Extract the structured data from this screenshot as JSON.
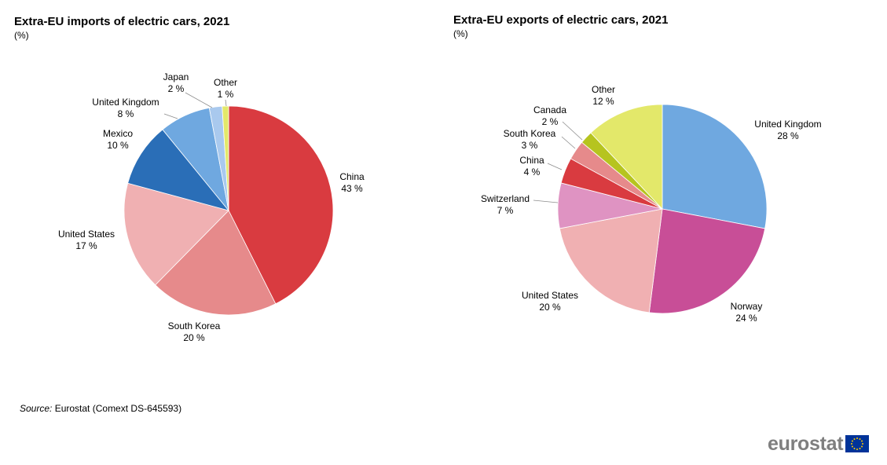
{
  "charts": {
    "left": {
      "title": "Extra-EU imports of electric cars, 2021",
      "subtitle": "(%)"
    },
    "right": {
      "title": "Extra-EU exports of electric cars, 2021",
      "subtitle": "(%)"
    }
  },
  "chart_data": [
    {
      "type": "pie",
      "title": "Extra-EU imports of electric cars, 2021",
      "unit": "(%)",
      "slices": [
        {
          "label": "China",
          "value": 43,
          "value_label": "43 %",
          "color": "#d93b40"
        },
        {
          "label": "South Korea",
          "value": 20,
          "value_label": "20 %",
          "color": "#e68a8b"
        },
        {
          "label": "United States",
          "value": 17,
          "value_label": "17 %",
          "color": "#f0b0b2"
        },
        {
          "label": "Mexico",
          "value": 10,
          "value_label": "10 %",
          "color": "#2a6eb7"
        },
        {
          "label": "United Kingdom",
          "value": 8,
          "value_label": "8 %",
          "color": "#6fa8e0"
        },
        {
          "label": "Japan",
          "value": 2,
          "value_label": "2 %",
          "color": "#a9c9ee"
        },
        {
          "label": "Other",
          "value": 1,
          "value_label": "1 %",
          "color": "#e3e86a"
        }
      ]
    },
    {
      "type": "pie",
      "title": "Extra-EU exports of electric cars, 2021",
      "unit": "(%)",
      "slices": [
        {
          "label": "United Kingdom",
          "value": 28,
          "value_label": "28 %",
          "color": "#6fa8e0"
        },
        {
          "label": "Norway",
          "value": 24,
          "value_label": "24 %",
          "color": "#c84e97"
        },
        {
          "label": "United States",
          "value": 20,
          "value_label": "20 %",
          "color": "#f0b0b2"
        },
        {
          "label": "Switzerland",
          "value": 7,
          "value_label": "7 %",
          "color": "#df93c2"
        },
        {
          "label": "China",
          "value": 4,
          "value_label": "4 %",
          "color": "#d93b40"
        },
        {
          "label": "South Korea",
          "value": 3,
          "value_label": "3 %",
          "color": "#e68a8b"
        },
        {
          "label": "Canada",
          "value": 2,
          "value_label": "2 %",
          "color": "#b6c41f"
        },
        {
          "label": "Other",
          "value": 12,
          "value_label": "12 %",
          "color": "#e3e86a"
        }
      ]
    }
  ],
  "source": {
    "label": "Source:",
    "text": "Eurostat (Comext DS-645593)"
  },
  "logo": {
    "text": "eurostat",
    "flag_color": "#003399",
    "star_color": "#ffcc00",
    "text_color": "#7f7f7f"
  }
}
